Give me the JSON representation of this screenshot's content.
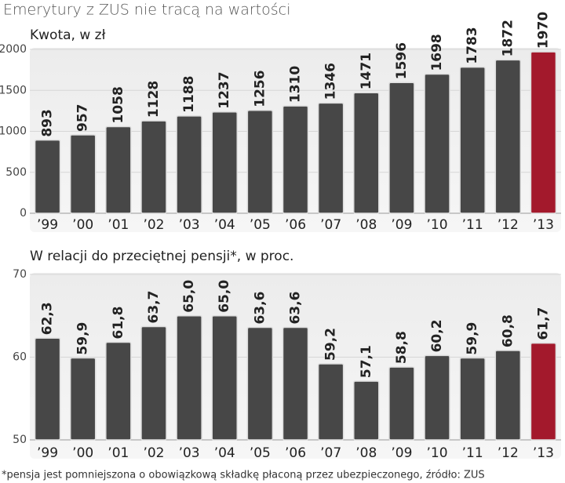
{
  "title": "Emerytury z ZUS nie tracą na wartości",
  "footnote": "*pensja jest pomniejszona o obowiązkową składkę płaconą przez ubezpieczonego, źródło: ZUS",
  "chart_data": [
    {
      "type": "bar",
      "subtitle": "Kwota, w zł",
      "categories": [
        "’99",
        "’00",
        "’01",
        "’02",
        "’03",
        "’04",
        "’05",
        "’06",
        "’07",
        "’08",
        "’09",
        "’10",
        "’11",
        "’12",
        "’13"
      ],
      "values": [
        893,
        957,
        1058,
        1128,
        1188,
        1237,
        1256,
        1310,
        1346,
        1471,
        1596,
        1698,
        1783,
        1872,
        1970
      ],
      "colors": [
        "#474747",
        "#474747",
        "#474747",
        "#474747",
        "#474747",
        "#474747",
        "#474747",
        "#474747",
        "#474747",
        "#474747",
        "#474747",
        "#474747",
        "#474747",
        "#474747",
        "#a3192c"
      ],
      "ylim": [
        0,
        2000
      ],
      "yticks": [
        0,
        500,
        1000,
        1500,
        2000
      ],
      "grid": true
    },
    {
      "type": "bar",
      "subtitle": "W relacji do przeciętnej pensji*, w proc.",
      "categories": [
        "’99",
        "’00",
        "’01",
        "’02",
        "’03",
        "’04",
        "’05",
        "’06",
        "’07",
        "’08",
        "’09",
        "’10",
        "’11",
        "’12",
        "’13"
      ],
      "values": [
        62.3,
        59.9,
        61.8,
        63.7,
        65.0,
        65.0,
        63.6,
        63.6,
        59.2,
        57.1,
        58.8,
        60.2,
        59.9,
        60.8,
        61.7
      ],
      "value_labels": [
        "62,3",
        "59,9",
        "61,8",
        "63,7",
        "65,0",
        "65,0",
        "63,6",
        "63,6",
        "59,2",
        "57,1",
        "58,8",
        "60,2",
        "59,9",
        "60,8",
        "61,7"
      ],
      "colors": [
        "#474747",
        "#474747",
        "#474747",
        "#474747",
        "#474747",
        "#474747",
        "#474747",
        "#474747",
        "#474747",
        "#474747",
        "#474747",
        "#474747",
        "#474747",
        "#474747",
        "#a3192c"
      ],
      "ylim": [
        50,
        70
      ],
      "yticks": [
        50,
        60,
        70
      ],
      "grid": true
    }
  ]
}
